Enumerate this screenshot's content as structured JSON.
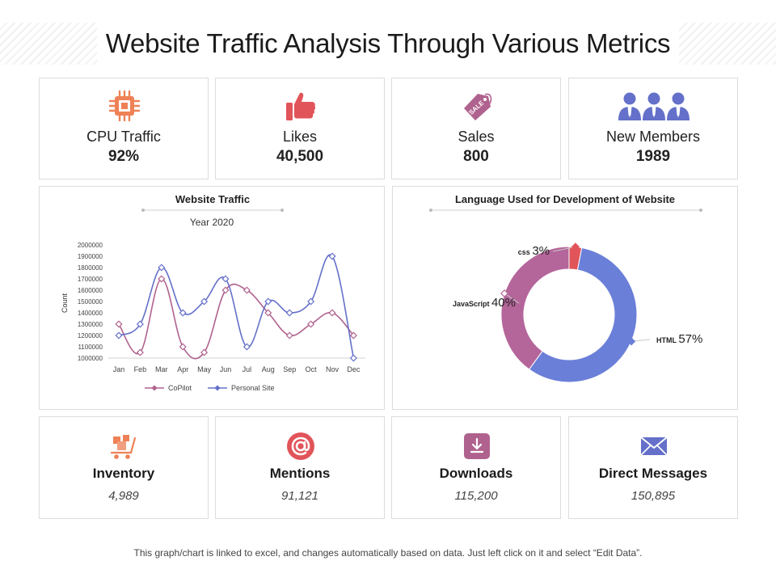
{
  "title": "Website Traffic Analysis Through Various Metrics",
  "kpis": [
    {
      "icon": "cpu-icon",
      "label": "CPU Traffic",
      "value": "92%",
      "color": "#ee8155"
    },
    {
      "icon": "thumbs-up-icon",
      "label": "Likes",
      "value": "40,500",
      "color": "#e1545a"
    },
    {
      "icon": "sale-tag-icon",
      "label": "Sales",
      "value": "800",
      "tag_text": "SALE",
      "color": "#b0628e"
    },
    {
      "icon": "users-group-icon",
      "label": "New Members",
      "value": "1989",
      "color": "#6470c9"
    }
  ],
  "stats": [
    {
      "icon": "inventory-cart-icon",
      "label": "Inventory",
      "value": "4,989",
      "color": "#ee8155"
    },
    {
      "icon": "at-sign-icon",
      "label": "Mentions",
      "value": "91,121",
      "color": "#e1545a"
    },
    {
      "icon": "download-icon",
      "label": "Downloads",
      "value": "115,200",
      "color": "#b0628e"
    },
    {
      "icon": "envelope-icon",
      "label": "Direct Messages",
      "value": "150,895",
      "color": "#6470c9"
    }
  ],
  "footer": "This graph/chart is linked to excel, and changes automatically based on data. Just left click on it and select “Edit Data”.",
  "chart_data": [
    {
      "type": "line",
      "title": "Website Traffic",
      "subtitle": "Year 2020",
      "xlabel": "",
      "ylabel": "Count",
      "categories": [
        "Jan",
        "Feb",
        "Mar",
        "Apr",
        "May",
        "Jun",
        "Jul",
        "Aug",
        "Sep",
        "Oct",
        "Nov",
        "Dec"
      ],
      "yticks": [
        "2000000",
        "1900000",
        "1800000",
        "1700000",
        "1600000",
        "1500000",
        "1400000",
        "1300000",
        "1200000",
        "1100000",
        "1000000"
      ],
      "ylim": [
        1000000,
        2000000
      ],
      "series": [
        {
          "name": "CoPilot",
          "color": "#b0628e",
          "values": [
            1300000,
            1050000,
            1700000,
            1100000,
            1050000,
            1600000,
            1600000,
            1400000,
            1200000,
            1300000,
            1400000,
            1200000
          ]
        },
        {
          "name": "Personal Site",
          "color": "#6470c9",
          "values": [
            1200000,
            1300000,
            1800000,
            1400000,
            1500000,
            1700000,
            1100000,
            1500000,
            1400000,
            1500000,
            1900000,
            1000000
          ]
        }
      ],
      "legend": "bottom",
      "grid": false
    },
    {
      "type": "pie",
      "title": "Language Used for Development of Website",
      "slices": [
        {
          "label": "CSS",
          "value": 3,
          "pct": "3%",
          "color": "#e1545a"
        },
        {
          "label": "HTML",
          "value": 57,
          "pct": "57%",
          "color": "#6a7fd8"
        },
        {
          "label": "JavaScript",
          "value": 40,
          "pct": "40%",
          "color": "#b4659a"
        }
      ]
    }
  ]
}
